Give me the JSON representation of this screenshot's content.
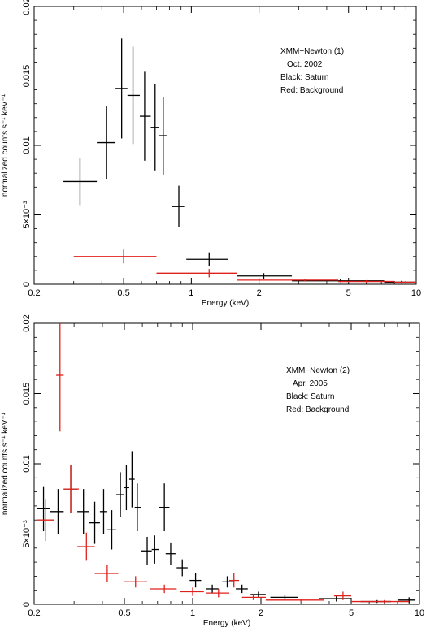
{
  "chart_data": [
    {
      "type": "scatter",
      "subtype": "errorbar",
      "xscale": "log",
      "xlim": [
        0.2,
        10
      ],
      "ylim": [
        0,
        0.02
      ],
      "xlabel": "Energy (keV)",
      "ylabel": "normalized counts s⁻¹ keV⁻¹",
      "xticks": [
        {
          "value": 0.2,
          "label": "0.2"
        },
        {
          "value": 0.5,
          "label": "0.5"
        },
        {
          "value": 1,
          "label": "1"
        },
        {
          "value": 2,
          "label": "2"
        },
        {
          "value": 5,
          "label": "5"
        },
        {
          "value": 10,
          "label": "10"
        }
      ],
      "yticks": [
        {
          "value": 0,
          "label": "0"
        },
        {
          "value": 0.005,
          "label": "5×10⁻³"
        },
        {
          "value": 0.01,
          "label": "0.01"
        },
        {
          "value": 0.015,
          "label": "0.015"
        },
        {
          "value": 0.02,
          "label": "0.02"
        }
      ],
      "annotation": [
        "XMM−Newton (1)",
        "Oct. 2002",
        "Black: Saturn",
        "Red: Background"
      ],
      "series": [
        {
          "color": "#000000",
          "points": [
            {
              "x": 0.32,
              "xlo": 0.27,
              "xhi": 0.38,
              "y": 0.0074,
              "ylo": 0.0057,
              "yhi": 0.0091
            },
            {
              "x": 0.42,
              "xlo": 0.38,
              "xhi": 0.46,
              "y": 0.0102,
              "ylo": 0.0076,
              "yhi": 0.0128
            },
            {
              "x": 0.49,
              "xlo": 0.46,
              "xhi": 0.52,
              "y": 0.0141,
              "ylo": 0.0105,
              "yhi": 0.0177
            },
            {
              "x": 0.55,
              "xlo": 0.52,
              "xhi": 0.59,
              "y": 0.0136,
              "ylo": 0.0101,
              "yhi": 0.0171
            },
            {
              "x": 0.62,
              "xlo": 0.59,
              "xhi": 0.66,
              "y": 0.0121,
              "ylo": 0.0089,
              "yhi": 0.0153
            },
            {
              "x": 0.69,
              "xlo": 0.66,
              "xhi": 0.72,
              "y": 0.0113,
              "ylo": 0.0082,
              "yhi": 0.0144
            },
            {
              "x": 0.75,
              "xlo": 0.72,
              "xhi": 0.78,
              "y": 0.0107,
              "ylo": 0.0079,
              "yhi": 0.0135
            },
            {
              "x": 0.88,
              "xlo": 0.82,
              "xhi": 0.93,
              "y": 0.0056,
              "ylo": 0.0041,
              "yhi": 0.0071
            },
            {
              "x": 1.2,
              "xlo": 0.95,
              "xhi": 1.45,
              "y": 0.0018,
              "ylo": 0.0013,
              "yhi": 0.0023
            },
            {
              "x": 2.1,
              "xlo": 1.6,
              "xhi": 2.8,
              "y": 0.0006,
              "ylo": 0.0004,
              "yhi": 0.0008
            },
            {
              "x": 4.6,
              "xlo": 2.8,
              "xhi": 7.2,
              "y": 0.00025,
              "ylo": 0.00015,
              "yhi": 0.00035
            },
            {
              "x": 8.6,
              "xlo": 7.2,
              "xhi": 10,
              "y": 0.00015,
              "ylo": 5e-05,
              "yhi": 0.00025
            }
          ]
        },
        {
          "color": "#e0201a",
          "points": [
            {
              "x": 0.5,
              "xlo": 0.3,
              "xhi": 0.7,
              "y": 0.002,
              "ylo": 0.0015,
              "yhi": 0.0025
            },
            {
              "x": 1.2,
              "xlo": 0.7,
              "xhi": 1.6,
              "y": 0.0008,
              "ylo": 0.0005,
              "yhi": 0.0011
            },
            {
              "x": 3.2,
              "xlo": 1.6,
              "xhi": 4.5,
              "y": 0.0003,
              "ylo": 0.0002,
              "yhi": 0.0004
            },
            {
              "x": 6.0,
              "xlo": 4.5,
              "xhi": 8.0,
              "y": 0.0002,
              "ylo": 0.0001,
              "yhi": 0.0003
            },
            {
              "x": 9.0,
              "xlo": 8.0,
              "xhi": 10,
              "y": 0.00015,
              "ylo": 5e-05,
              "yhi": 0.00025
            }
          ]
        }
      ]
    },
    {
      "type": "scatter",
      "subtype": "errorbar",
      "xscale": "log",
      "xlim": [
        0.2,
        10
      ],
      "ylim": [
        0,
        0.02
      ],
      "xlabel": "Energy (keV)",
      "ylabel": "normalized counts s⁻¹ keV⁻¹",
      "xticks": [
        {
          "value": 0.2,
          "label": "0.2"
        },
        {
          "value": 0.5,
          "label": "0.5"
        },
        {
          "value": 1,
          "label": "1"
        },
        {
          "value": 2,
          "label": "2"
        },
        {
          "value": 5,
          "label": "5"
        },
        {
          "value": 10,
          "label": "10"
        }
      ],
      "yticks": [
        {
          "value": 0,
          "label": "0"
        },
        {
          "value": 0.005,
          "label": "5×10⁻³"
        },
        {
          "value": 0.01,
          "label": "0.01"
        },
        {
          "value": 0.015,
          "label": "0.015"
        },
        {
          "value": 0.02,
          "label": "0.02"
        }
      ],
      "annotation": [
        "XMM−Newton (2)",
        "Apr. 2005",
        "Black: Saturn",
        "Red: Background"
      ],
      "series": [
        {
          "color": "#000000",
          "points": [
            {
              "x": 0.22,
              "xlo": 0.205,
              "xhi": 0.235,
              "y": 0.0068,
              "ylo": 0.0052,
              "yhi": 0.0084
            },
            {
              "x": 0.255,
              "xlo": 0.235,
              "xhi": 0.27,
              "y": 0.0066,
              "ylo": 0.005,
              "yhi": 0.0082
            },
            {
              "x": 0.29,
              "xlo": 0.27,
              "xhi": 0.31,
              "y": 0.0082,
              "ylo": 0.0065,
              "yhi": 0.0099
            },
            {
              "x": 0.33,
              "xlo": 0.31,
              "xhi": 0.35,
              "y": 0.0066,
              "ylo": 0.005,
              "yhi": 0.0082
            },
            {
              "x": 0.37,
              "xlo": 0.35,
              "xhi": 0.39,
              "y": 0.0058,
              "ylo": 0.0043,
              "yhi": 0.0073
            },
            {
              "x": 0.405,
              "xlo": 0.39,
              "xhi": 0.42,
              "y": 0.0066,
              "ylo": 0.005,
              "yhi": 0.0082
            },
            {
              "x": 0.44,
              "xlo": 0.42,
              "xhi": 0.46,
              "y": 0.0053,
              "ylo": 0.0039,
              "yhi": 0.0067
            },
            {
              "x": 0.48,
              "xlo": 0.46,
              "xhi": 0.5,
              "y": 0.0078,
              "ylo": 0.0062,
              "yhi": 0.0094
            },
            {
              "x": 0.51,
              "xlo": 0.5,
              "xhi": 0.525,
              "y": 0.0083,
              "ylo": 0.0067,
              "yhi": 0.0099
            },
            {
              "x": 0.54,
              "xlo": 0.525,
              "xhi": 0.555,
              "y": 0.0089,
              "ylo": 0.0069,
              "yhi": 0.0109
            },
            {
              "x": 0.57,
              "xlo": 0.555,
              "xhi": 0.59,
              "y": 0.0069,
              "ylo": 0.0052,
              "yhi": 0.0086
            },
            {
              "x": 0.63,
              "xlo": 0.59,
              "xhi": 0.66,
              "y": 0.0038,
              "ylo": 0.0028,
              "yhi": 0.0048
            },
            {
              "x": 0.68,
              "xlo": 0.66,
              "xhi": 0.71,
              "y": 0.0039,
              "ylo": 0.0029,
              "yhi": 0.0049
            },
            {
              "x": 0.75,
              "xlo": 0.71,
              "xhi": 0.79,
              "y": 0.0069,
              "ylo": 0.0052,
              "yhi": 0.0086
            },
            {
              "x": 0.8,
              "xlo": 0.76,
              "xhi": 0.84,
              "y": 0.0036,
              "ylo": 0.0028,
              "yhi": 0.0044
            },
            {
              "x": 0.9,
              "xlo": 0.85,
              "xhi": 0.95,
              "y": 0.0026,
              "ylo": 0.002,
              "yhi": 0.0032
            },
            {
              "x": 1.03,
              "xlo": 0.97,
              "xhi": 1.09,
              "y": 0.0017,
              "ylo": 0.0012,
              "yhi": 0.0022
            },
            {
              "x": 1.22,
              "xlo": 1.15,
              "xhi": 1.3,
              "y": 0.0011,
              "ylo": 0.0008,
              "yhi": 0.0014
            },
            {
              "x": 1.42,
              "xlo": 1.35,
              "xhi": 1.5,
              "y": 0.0016,
              "ylo": 0.0012,
              "yhi": 0.002
            },
            {
              "x": 1.65,
              "xlo": 1.55,
              "xhi": 1.75,
              "y": 0.0011,
              "ylo": 0.0008,
              "yhi": 0.0014
            },
            {
              "x": 1.95,
              "xlo": 1.8,
              "xhi": 2.1,
              "y": 0.0007,
              "ylo": 0.0005,
              "yhi": 0.0009
            },
            {
              "x": 2.55,
              "xlo": 2.2,
              "xhi": 2.9,
              "y": 0.0005,
              "ylo": 0.0003,
              "yhi": 0.0007
            },
            {
              "x": 4.3,
              "xlo": 3.6,
              "xhi": 5.0,
              "y": 0.0004,
              "ylo": 0.0002,
              "yhi": 0.0006
            },
            {
              "x": 6.5,
              "xlo": 5.5,
              "xhi": 7.5,
              "y": 0.0002,
              "ylo": 0.0001,
              "yhi": 0.0003
            },
            {
              "x": 9.0,
              "xlo": 8.0,
              "xhi": 9.6,
              "y": 0.0003,
              "ylo": 0.0001,
              "yhi": 0.0005
            }
          ]
        },
        {
          "color": "#e0201a",
          "points": [
            {
              "x": 0.225,
              "xlo": 0.205,
              "xhi": 0.245,
              "y": 0.006,
              "ylo": 0.0045,
              "yhi": 0.0075
            },
            {
              "x": 0.26,
              "xlo": 0.25,
              "xhi": 0.27,
              "y": 0.0163,
              "ylo": 0.0123,
              "yhi": 0.0203
            },
            {
              "x": 0.29,
              "xlo": 0.27,
              "xhi": 0.315,
              "y": 0.0082,
              "ylo": 0.0065,
              "yhi": 0.0099
            },
            {
              "x": 0.34,
              "xlo": 0.31,
              "xhi": 0.37,
              "y": 0.0041,
              "ylo": 0.0031,
              "yhi": 0.0051
            },
            {
              "x": 0.42,
              "xlo": 0.37,
              "xhi": 0.47,
              "y": 0.0022,
              "ylo": 0.0016,
              "yhi": 0.0028
            },
            {
              "x": 0.56,
              "xlo": 0.5,
              "xhi": 0.63,
              "y": 0.0016,
              "ylo": 0.0012,
              "yhi": 0.002
            },
            {
              "x": 0.75,
              "xlo": 0.65,
              "xhi": 0.85,
              "y": 0.0011,
              "ylo": 0.0008,
              "yhi": 0.0014
            },
            {
              "x": 1.0,
              "xlo": 0.88,
              "xhi": 1.12,
              "y": 0.0009,
              "ylo": 0.0006,
              "yhi": 0.0012
            },
            {
              "x": 1.3,
              "xlo": 1.15,
              "xhi": 1.45,
              "y": 0.0008,
              "ylo": 0.0005,
              "yhi": 0.0011
            },
            {
              "x": 1.52,
              "xlo": 1.45,
              "xhi": 1.6,
              "y": 0.0017,
              "ylo": 0.0012,
              "yhi": 0.0022
            },
            {
              "x": 1.85,
              "xlo": 1.65,
              "xhi": 2.1,
              "y": 0.0005,
              "ylo": 0.0003,
              "yhi": 0.0007
            },
            {
              "x": 3.0,
              "xlo": 2.1,
              "xhi": 3.8,
              "y": 0.0003,
              "ylo": 0.0002,
              "yhi": 0.0004
            },
            {
              "x": 4.6,
              "xlo": 4.2,
              "xhi": 5.0,
              "y": 0.0006,
              "ylo": 0.0003,
              "yhi": 0.0009
            },
            {
              "x": 7.0,
              "xlo": 5.0,
              "xhi": 9.0,
              "y": 0.0002,
              "ylo": 0.0001,
              "yhi": 0.0003
            }
          ]
        }
      ]
    }
  ]
}
